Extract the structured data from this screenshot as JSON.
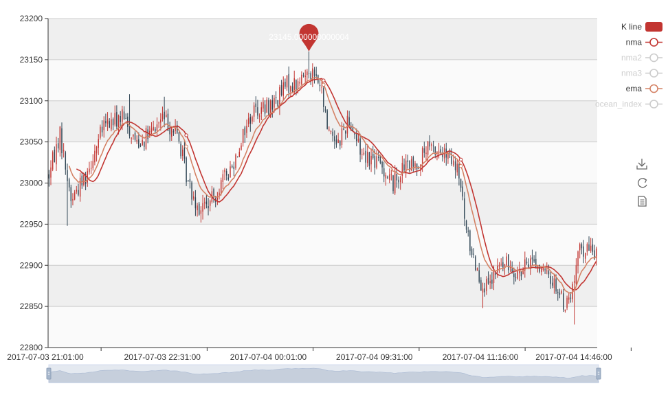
{
  "colors": {
    "up": "#c23531",
    "down": "#2f4554",
    "nma": "#c23531",
    "nma2": "#bbbbbb",
    "nma3": "#bbbbbb",
    "ema": "#d48265",
    "ocean_index": "#bbbbbb",
    "band_dark": "#efefef",
    "band_light": "#fafafa",
    "grid": "#cccccc",
    "axis": "#333333",
    "marker": "#c23531",
    "zoom_fill": "#e4e9f0",
    "zoom_line": "#a8b8d2",
    "zoom_handle": "#a7b7cc"
  },
  "legend": {
    "items": [
      {
        "key": "kline",
        "label": "K line",
        "active": true
      },
      {
        "key": "nma",
        "label": "nma",
        "active": true
      },
      {
        "key": "nma2",
        "label": "nma2",
        "active": false
      },
      {
        "key": "nma3",
        "label": "nma3",
        "active": false
      },
      {
        "key": "ema",
        "label": "ema",
        "active": true
      },
      {
        "key": "ocean_index",
        "label": "ocean_index",
        "active": false
      }
    ]
  },
  "toolbox": {
    "icons": [
      "download-icon",
      "refresh-icon",
      "data-view-icon"
    ]
  },
  "chart_data": {
    "type": "candlestick",
    "title": "",
    "xlabel": "",
    "ylabel": "",
    "ylim": [
      22800,
      23200
    ],
    "yticks": [
      22800,
      22850,
      22900,
      22950,
      23000,
      23050,
      23100,
      23150,
      23200
    ],
    "x_tick_labels": [
      "2017-07-03 21:01:00",
      "2017-07-03 22:31:00",
      "2017-07-04 00:01:00",
      "2017-07-04 09:31:00",
      "2017-07-04 11:16:00",
      "2017-07-04 14:46:00"
    ],
    "grid": "alternating horizontal bands",
    "legend_position": "top-right",
    "max_marker": {
      "label": "23145.000000000004",
      "value": 23145.000000000004
    },
    "close_anchors": [
      [
        0,
        23010
      ],
      [
        6,
        23060
      ],
      [
        12,
        22980
      ],
      [
        20,
        23010
      ],
      [
        30,
        23070
      ],
      [
        40,
        23080
      ],
      [
        48,
        23050
      ],
      [
        56,
        23060
      ],
      [
        62,
        23080
      ],
      [
        70,
        23060
      ],
      [
        76,
        23000
      ],
      [
        82,
        22970
      ],
      [
        88,
        22975
      ],
      [
        94,
        23000
      ],
      [
        100,
        23020
      ],
      [
        106,
        23060
      ],
      [
        112,
        23090
      ],
      [
        118,
        23090
      ],
      [
        124,
        23100
      ],
      [
        130,
        23120
      ],
      [
        136,
        23120
      ],
      [
        142,
        23140
      ],
      [
        148,
        23120
      ],
      [
        152,
        23070
      ],
      [
        158,
        23050
      ],
      [
        164,
        23080
      ],
      [
        170,
        23040
      ],
      [
        176,
        23030
      ],
      [
        182,
        23020
      ],
      [
        188,
        23000
      ],
      [
        194,
        23020
      ],
      [
        200,
        23020
      ],
      [
        206,
        23040
      ],
      [
        212,
        23040
      ],
      [
        218,
        23030
      ],
      [
        224,
        23010
      ],
      [
        228,
        22940
      ],
      [
        232,
        22910
      ],
      [
        236,
        22880
      ],
      [
        240,
        22870
      ],
      [
        246,
        22900
      ],
      [
        252,
        22900
      ],
      [
        258,
        22890
      ],
      [
        264,
        22910
      ],
      [
        270,
        22890
      ],
      [
        276,
        22880
      ],
      [
        282,
        22850
      ],
      [
        286,
        22870
      ],
      [
        290,
        22920
      ]
    ],
    "spikes": [
      {
        "index": 10,
        "low": 22948
      },
      {
        "index": 83,
        "low": 22952
      },
      {
        "index": 142,
        "high": 23160
      },
      {
        "index": 237,
        "low": 22848
      },
      {
        "index": 287,
        "low": 22828
      },
      {
        "index": 44,
        "high": 23108
      },
      {
        "index": 63,
        "high": 23105
      }
    ]
  }
}
